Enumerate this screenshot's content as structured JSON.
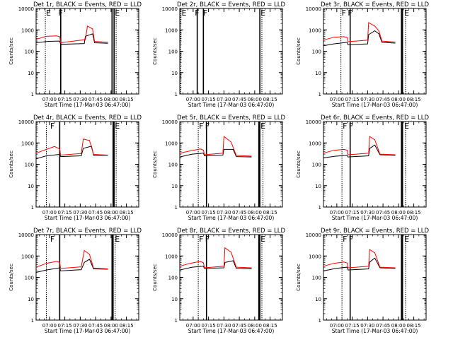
{
  "chart_data": {
    "type": "line",
    "ylabel": "Counts/sec",
    "xlabel": "Start Time (17-Mar-03 06:47:00)",
    "yscale": "log",
    "ylim": [
      1,
      10000
    ],
    "y_ticks": [
      1,
      10,
      100,
      1000,
      10000
    ],
    "y_tick_labels": [
      "1",
      "10",
      "100",
      "1000",
      "10000"
    ],
    "x_range": [
      "06:47",
      "08:27"
    ],
    "grid": false,
    "legend": "none",
    "series_colors": {
      "Events": "#000000",
      "LLD": "#ff0000"
    },
    "panels": [
      {
        "title": "Det 1r, BLACK = Events, RED = LLD",
        "x_ticks": [
          "07:00",
          "07:15",
          "07:30",
          "07:45",
          "08:00",
          "08:15"
        ],
        "flags": [
          {
            "label": "E",
            "time": "06:56"
          },
          {
            "label": "F",
            "time": "07:08"
          },
          {
            "label": "E",
            "time": "08:03"
          }
        ],
        "solid_lines": [
          "07:11",
          "08:01",
          "08:03"
        ],
        "dashed_lines": [
          "06:56",
          "08:05"
        ],
        "has_data": true,
        "series": [
          {
            "name": "Events",
            "values": [
              [
                0,
                250
              ],
              [
                12,
                290
              ],
              [
                23,
                300
              ],
              [
                24,
                210
              ],
              [
                47,
                230
              ],
              [
                48,
                500
              ],
              [
                55,
                650
              ],
              [
                57,
                250
              ],
              [
                70,
                235
              ]
            ]
          },
          {
            "name": "LLD",
            "values": [
              [
                0,
                360
              ],
              [
                10,
                500
              ],
              [
                20,
                520
              ],
              [
                23,
                480
              ],
              [
                24,
                250
              ],
              [
                48,
                350
              ],
              [
                50,
                1500
              ],
              [
                55,
                1100
              ],
              [
                57,
                290
              ],
              [
                70,
                260
              ]
            ]
          }
        ]
      },
      {
        "title": "Det 2r, BLACK = Events, RED = LLD",
        "x_ticks": [
          "07:00",
          "07:15",
          "07:30",
          "07:45",
          "08:00",
          "08:15"
        ],
        "flags": [
          {
            "label": "E",
            "time": "06:48"
          },
          {
            "label": "F",
            "time": "07:01"
          },
          {
            "label": "F",
            "time": "07:09"
          },
          {
            "label": "E",
            "time": "08:05"
          }
        ],
        "solid_lines": [
          "07:04",
          "07:10",
          "08:05"
        ],
        "dashed_lines": [
          "06:48",
          "08:07"
        ],
        "has_data": false,
        "series": []
      },
      {
        "title": "Det 3r, BLACK = Events, RED = LLD",
        "x_ticks": [
          "07:00",
          "07:15",
          "07:30",
          "07:45",
          "08:00",
          "08:15"
        ],
        "flags": [
          {
            "label": "F",
            "time": "07:04"
          },
          {
            "label": "F",
            "time": "07:10"
          },
          {
            "label": "E",
            "time": "08:05"
          }
        ],
        "solid_lines": [
          "07:13",
          "08:03",
          "08:04"
        ],
        "dashed_lines": [
          "07:04",
          "08:07"
        ],
        "has_data": true,
        "series": [
          {
            "name": "Events",
            "values": [
              [
                0,
                180
              ],
              [
                10,
                220
              ],
              [
                23,
                260
              ],
              [
                24,
                200
              ],
              [
                43,
                220
              ],
              [
                44,
                600
              ],
              [
                50,
                900
              ],
              [
                54,
                650
              ],
              [
                57,
                260
              ],
              [
                70,
                240
              ]
            ]
          },
          {
            "name": "LLD",
            "values": [
              [
                0,
                330
              ],
              [
                10,
                450
              ],
              [
                20,
                480
              ],
              [
                23,
                440
              ],
              [
                24,
                280
              ],
              [
                43,
                330
              ],
              [
                44,
                2200
              ],
              [
                50,
                1500
              ],
              [
                54,
                900
              ],
              [
                57,
                300
              ],
              [
                70,
                270
              ]
            ]
          }
        ]
      },
      {
        "title": "Det 4r, BLACK = Events, RED = LLD",
        "x_ticks": [
          "07:00",
          "07:15",
          "07:30",
          "07:45",
          "08:00",
          "08:15"
        ],
        "flags": [
          {
            "label": "F",
            "time": "07:00"
          },
          {
            "label": "E",
            "time": "08:03"
          }
        ],
        "solid_lines": [
          "07:10",
          "08:02",
          "08:03"
        ],
        "dashed_lines": [
          "06:57",
          "08:05"
        ],
        "has_data": true,
        "series": [
          {
            "name": "Events",
            "values": [
              [
                0,
                180
              ],
              [
                10,
                250
              ],
              [
                23,
                290
              ],
              [
                24,
                230
              ],
              [
                44,
                250
              ],
              [
                46,
                560
              ],
              [
                54,
                700
              ],
              [
                56,
                260
              ],
              [
                70,
                260
              ]
            ]
          },
          {
            "name": "LLD",
            "values": [
              [
                0,
                330
              ],
              [
                10,
                500
              ],
              [
                18,
                680
              ],
              [
                23,
                520
              ],
              [
                24,
                270
              ],
              [
                44,
                320
              ],
              [
                46,
                1500
              ],
              [
                52,
                1300
              ],
              [
                56,
                290
              ],
              [
                70,
                270
              ]
            ]
          }
        ]
      },
      {
        "title": "Det 5r, BLACK = Events, RED = LLD",
        "x_ticks": [
          "07:00",
          "07:15",
          "07:30",
          "07:45",
          "08:00",
          "08:15"
        ],
        "flags": [
          {
            "label": "F",
            "time": "07:05"
          },
          {
            "label": "F",
            "time": "07:11"
          },
          {
            "label": "E",
            "time": "08:05"
          }
        ],
        "solid_lines": [
          "07:13",
          "08:04",
          "08:05"
        ],
        "dashed_lines": [
          "07:05",
          "08:08"
        ],
        "has_data": true,
        "series": [
          {
            "name": "Events",
            "values": [
              [
                0,
                220
              ],
              [
                12,
                300
              ],
              [
                23,
                330
              ],
              [
                24,
                250
              ],
              [
                42,
                270
              ],
              [
                43,
                500
              ],
              [
                52,
                500
              ],
              [
                55,
                230
              ],
              [
                70,
                220
              ]
            ]
          },
          {
            "name": "LLD",
            "values": [
              [
                0,
                330
              ],
              [
                10,
                420
              ],
              [
                20,
                520
              ],
              [
                23,
                460
              ],
              [
                24,
                280
              ],
              [
                42,
                330
              ],
              [
                43,
                2000
              ],
              [
                50,
                1100
              ],
              [
                55,
                260
              ],
              [
                70,
                240
              ]
            ]
          }
        ]
      },
      {
        "title": "Det 6r, BLACK = Events, RED = LLD",
        "x_ticks": [
          "07:00",
          "07:15",
          "07:30",
          "07:45",
          "08:00",
          "08:15"
        ],
        "flags": [
          {
            "label": "F",
            "time": "07:05"
          },
          {
            "label": "F",
            "time": "07:11"
          },
          {
            "label": "E",
            "time": "08:05"
          }
        ],
        "solid_lines": [
          "07:13",
          "08:03",
          "08:04"
        ],
        "dashed_lines": [
          "07:05",
          "08:07"
        ],
        "has_data": true,
        "series": [
          {
            "name": "Events",
            "values": [
              [
                0,
                200
              ],
              [
                12,
                240
              ],
              [
                23,
                260
              ],
              [
                24,
                220
              ],
              [
                44,
                250
              ],
              [
                45,
                550
              ],
              [
                50,
                800
              ],
              [
                55,
                280
              ],
              [
                70,
                260
              ]
            ]
          },
          {
            "name": "LLD",
            "values": [
              [
                0,
                330
              ],
              [
                10,
                450
              ],
              [
                20,
                500
              ],
              [
                23,
                460
              ],
              [
                24,
                280
              ],
              [
                44,
                330
              ],
              [
                45,
                2000
              ],
              [
                50,
                1400
              ],
              [
                55,
                300
              ],
              [
                70,
                280
              ]
            ]
          }
        ]
      },
      {
        "title": "Det 7r, BLACK = Events, RED = LLD",
        "x_ticks": [
          "07:00",
          "07:15",
          "07:30",
          "07:45",
          "08:00",
          "08:15"
        ],
        "flags": [
          {
            "label": "F",
            "time": "07:00"
          },
          {
            "label": "E",
            "time": "08:03"
          }
        ],
        "solid_lines": [
          "07:10",
          "08:01",
          "08:02"
        ],
        "dashed_lines": [
          "06:57",
          "08:04"
        ],
        "has_data": true,
        "series": [
          {
            "name": "Events",
            "values": [
              [
                0,
                170
              ],
              [
                10,
                220
              ],
              [
                23,
                280
              ],
              [
                24,
                200
              ],
              [
                44,
                230
              ],
              [
                47,
                500
              ],
              [
                52,
                700
              ],
              [
                56,
                250
              ],
              [
                70,
                240
              ]
            ]
          },
          {
            "name": "LLD",
            "values": [
              [
                0,
                300
              ],
              [
                10,
                450
              ],
              [
                20,
                560
              ],
              [
                23,
                500
              ],
              [
                24,
                260
              ],
              [
                44,
                310
              ],
              [
                47,
                1800
              ],
              [
                52,
                1200
              ],
              [
                56,
                270
              ],
              [
                70,
                250
              ]
            ]
          }
        ]
      },
      {
        "title": "Det 8r, BLACK = Events, RED = LLD",
        "x_ticks": [
          "07:00",
          "07:15",
          "07:30",
          "07:45",
          "08:00",
          "08:15"
        ],
        "flags": [
          {
            "label": "F",
            "time": "07:05"
          },
          {
            "label": "F",
            "time": "07:11"
          },
          {
            "label": "E",
            "time": "08:05"
          }
        ],
        "solid_lines": [
          "07:13",
          "08:04",
          "08:05"
        ],
        "dashed_lines": [
          "07:05",
          "08:07"
        ],
        "has_data": true,
        "series": [
          {
            "name": "Events",
            "values": [
              [
                0,
                220
              ],
              [
                12,
                300
              ],
              [
                23,
                330
              ],
              [
                24,
                260
              ],
              [
                43,
                280
              ],
              [
                44,
                500
              ],
              [
                52,
                600
              ],
              [
                55,
                260
              ],
              [
                70,
                250
              ]
            ]
          },
          {
            "name": "LLD",
            "values": [
              [
                0,
                330
              ],
              [
                10,
                450
              ],
              [
                20,
                560
              ],
              [
                23,
                480
              ],
              [
                24,
                280
              ],
              [
                43,
                330
              ],
              [
                44,
                2400
              ],
              [
                50,
                1500
              ],
              [
                55,
                300
              ],
              [
                70,
                280
              ]
            ]
          }
        ]
      },
      {
        "title": "Det 9r, BLACK = Events, RED = LLD",
        "x_ticks": [
          "07:00",
          "07:15",
          "07:30",
          "07:45",
          "08:00",
          "08:15"
        ],
        "flags": [
          {
            "label": "F",
            "time": "07:05"
          },
          {
            "label": "F",
            "time": "07:11"
          },
          {
            "label": "E",
            "time": "08:05"
          }
        ],
        "solid_lines": [
          "07:13",
          "08:03",
          "08:04"
        ],
        "dashed_lines": [
          "07:05",
          "08:07"
        ],
        "has_data": true,
        "series": [
          {
            "name": "Events",
            "values": [
              [
                0,
                200
              ],
              [
                12,
                260
              ],
              [
                23,
                300
              ],
              [
                24,
                220
              ],
              [
                44,
                250
              ],
              [
                45,
                520
              ],
              [
                50,
                800
              ],
              [
                55,
                280
              ],
              [
                70,
                260
              ]
            ]
          },
          {
            "name": "LLD",
            "values": [
              [
                0,
                330
              ],
              [
                10,
                450
              ],
              [
                20,
                520
              ],
              [
                23,
                470
              ],
              [
                24,
                280
              ],
              [
                44,
                330
              ],
              [
                45,
                2000
              ],
              [
                50,
                1400
              ],
              [
                55,
                300
              ],
              [
                70,
                280
              ]
            ]
          }
        ]
      }
    ]
  }
}
